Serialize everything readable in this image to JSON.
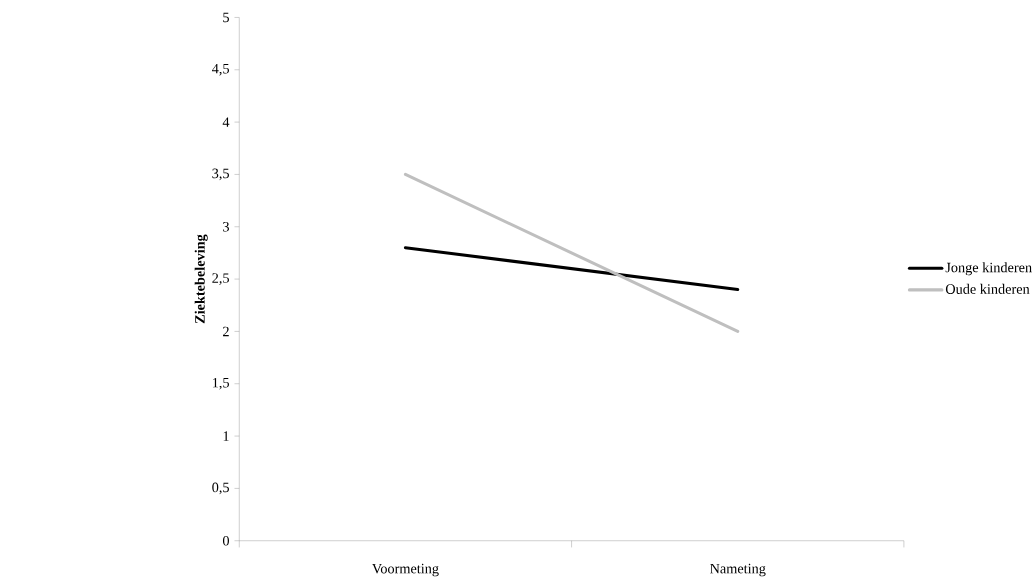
{
  "chart_data": {
    "type": "line",
    "ylabel": "**Ziektebeleving**",
    "categories": [
      "Voormeting",
      "Nameting"
    ],
    "series": [
      {
        "name": "Jonge kinderen",
        "color": "#000000",
        "values": [
          2.8,
          2.4
        ]
      },
      {
        "name": "Oude kinderen",
        "color": "#bfbfbf",
        "values": [
          3.5,
          2.0
        ]
      }
    ],
    "ylim": [
      0,
      5
    ],
    "yticks": [
      0,
      {
        "value": 0.5,
        "label": "0,5"
      },
      1,
      {
        "value": 1.5,
        "label": "1,5"
      },
      2,
      {
        "value": 2.5,
        "label": "2,5"
      },
      3,
      {
        "value": 3.5,
        "label": "3,5"
      },
      4,
      {
        "value": 4.5,
        "label": "4,5"
      },
      5
    ],
    "grid": false,
    "legend": "right",
    "marker": "none",
    "line_style": "solid"
  }
}
